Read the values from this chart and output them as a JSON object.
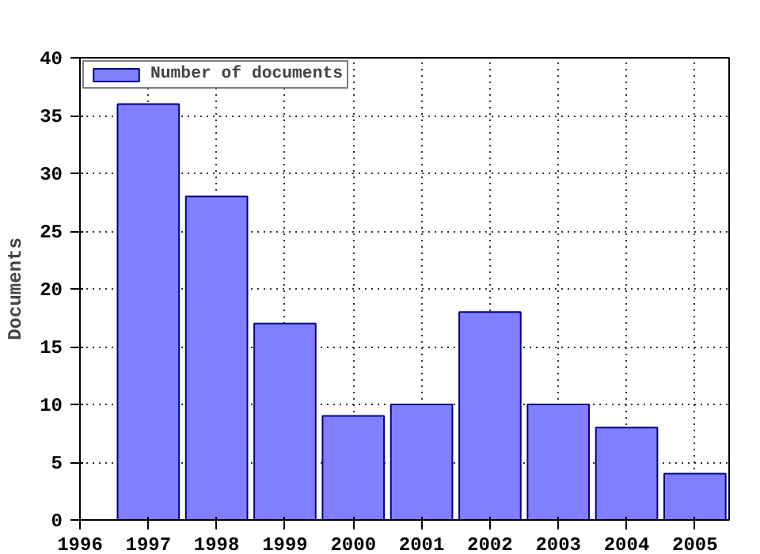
{
  "chart_data": {
    "type": "bar",
    "ylabel": "Documents",
    "x": [
      1997,
      1998,
      1999,
      2000,
      2001,
      2002,
      2003,
      2004,
      2005
    ],
    "series": [
      {
        "name": "Number of documents",
        "color": "#7f7fff",
        "values": [
          36,
          28,
          17,
          9,
          10,
          18,
          10,
          8,
          4
        ]
      }
    ],
    "xlim": [
      1996,
      2005.5
    ],
    "xticks": [
      1996,
      1997,
      1998,
      1999,
      2000,
      2001,
      2002,
      2003,
      2004,
      2005
    ],
    "ylim": [
      0,
      40
    ],
    "yticks": [
      0,
      5,
      10,
      15,
      20,
      25,
      30,
      35,
      40
    ],
    "grid": true,
    "legend": "top left"
  }
}
